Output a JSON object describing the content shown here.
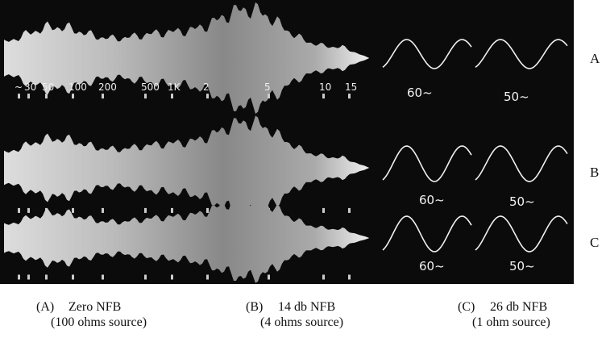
{
  "rows": [
    {
      "label": "A",
      "markers": [
        "~",
        "30",
        "50",
        "100",
        "200",
        "500",
        "1K",
        "2",
        "5",
        "10",
        "15"
      ],
      "traces": [
        "60~",
        "50~"
      ]
    },
    {
      "label": "B",
      "traces": [
        "60~",
        "50~"
      ]
    },
    {
      "label": "C",
      "traces": [
        "60~",
        "50~"
      ]
    }
  ],
  "captions": [
    {
      "key": "(A)",
      "title": "Zero NFB",
      "note": "(100 ohms source)"
    },
    {
      "key": "(B)",
      "title": "14 db NFB",
      "note": "(4 ohms source)"
    },
    {
      "key": "(C)",
      "title": "26 db NFB",
      "note": "(1 ohm source)"
    }
  ]
}
